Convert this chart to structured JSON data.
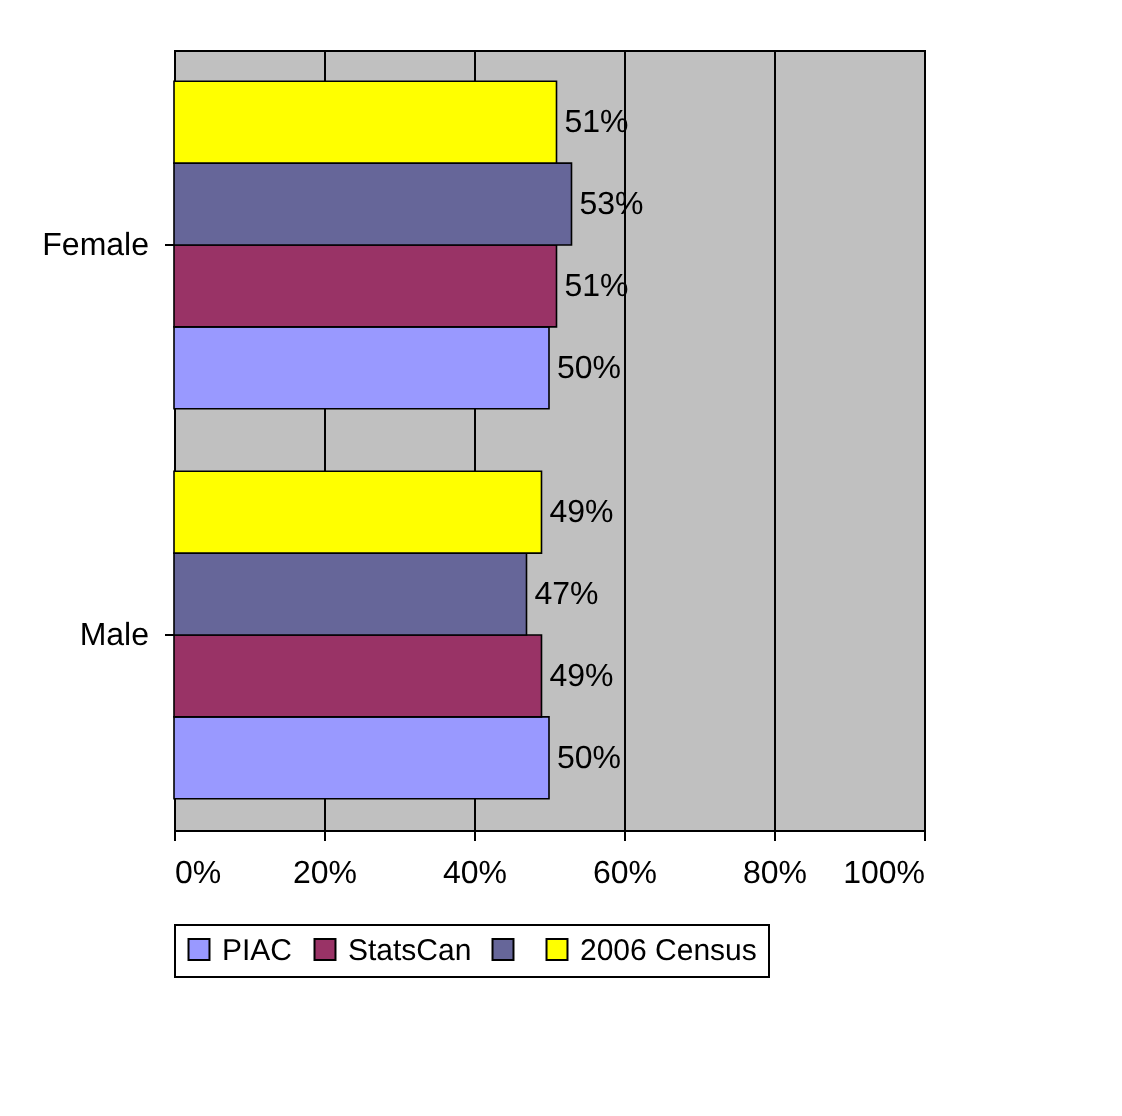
{
  "chart_data": {
    "type": "bar",
    "orientation": "horizontal",
    "categories": [
      "Female",
      "Male"
    ],
    "series": [
      {
        "name": "PIAC",
        "color": "#9999ff",
        "values": [
          50,
          50
        ],
        "value_labels": [
          "50%",
          "50%"
        ]
      },
      {
        "name": "StatsCan",
        "color": "#993366",
        "values": [
          51,
          49
        ],
        "value_labels": [
          "51%",
          "49%"
        ]
      },
      {
        "color": "#666699",
        "values": [
          53,
          47
        ],
        "value_labels": [
          "53%",
          "47%"
        ]
      },
      {
        "name": "2006 Census",
        "color": "#ffff00",
        "values": [
          51,
          49
        ],
        "value_labels": [
          "51%",
          "49%"
        ]
      }
    ],
    "xlim": [
      0,
      100
    ],
    "xticks": [
      {
        "value": 0,
        "label": "0%"
      },
      {
        "value": 20,
        "label": "20%"
      },
      {
        "value": 40,
        "label": "40%"
      },
      {
        "value": 60,
        "label": "60%"
      },
      {
        "value": 80,
        "label": "80%"
      },
      {
        "value": 100,
        "label": "100%"
      }
    ],
    "grid": "x",
    "legend": "bottom"
  }
}
